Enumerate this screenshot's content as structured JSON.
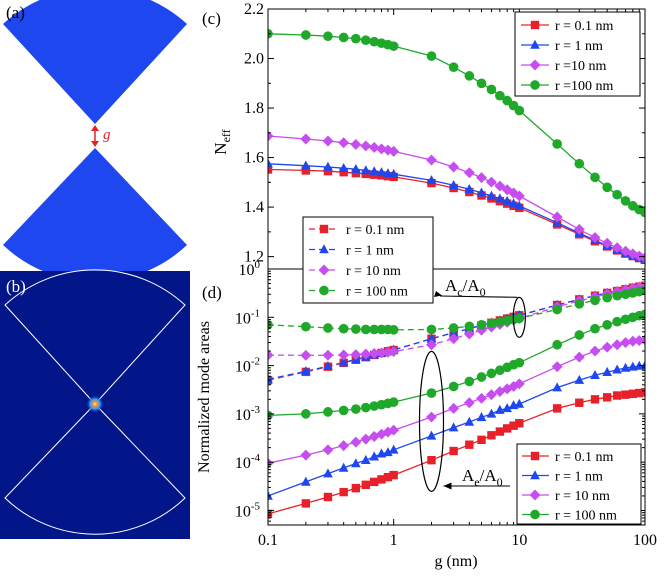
{
  "panels": {
    "a": {
      "label": "(a)",
      "gap_symbol": "g",
      "shape_color": "#1f47f0",
      "gap_color": "#e8202a"
    },
    "b": {
      "label": "(b)",
      "background_color": "#02168a",
      "outline_color": "#ffffff",
      "hotspot_color": "#fff6a8"
    },
    "c": {
      "label": "(c)"
    },
    "d": {
      "label": "(d)"
    }
  },
  "chart_data": [
    {
      "id": "c",
      "type": "line",
      "title": "",
      "xlabel": "g (nm)",
      "ylabel_main": "N",
      "ylabel_sub": "eff",
      "xscale": "log",
      "xlim": [
        0.1,
        100
      ],
      "ylim": [
        1.15,
        2.2
      ],
      "yticks": [
        1.2,
        1.4,
        1.6,
        1.8,
        2.0,
        2.2
      ],
      "ytick_labels": [
        "1.2",
        "1.4",
        "1.6",
        "1.8",
        "2.0",
        "2.2"
      ],
      "legend_position": "top-right",
      "x": [
        0.1,
        0.2,
        0.3,
        0.4,
        0.5,
        0.6,
        0.7,
        0.8,
        0.9,
        1,
        2,
        3,
        4,
        5,
        6,
        7,
        8,
        9,
        10,
        20,
        30,
        40,
        50,
        60,
        70,
        80,
        90,
        100
      ],
      "series": [
        {
          "name": "r = 0.1 nm",
          "color": "#e8202a",
          "marker": "square",
          "values": [
            1.552,
            1.548,
            1.545,
            1.541,
            1.537,
            1.534,
            1.531,
            1.528,
            1.525,
            1.522,
            1.497,
            1.477,
            1.461,
            1.447,
            1.435,
            1.424,
            1.414,
            1.405,
            1.397,
            1.33,
            1.29,
            1.262,
            1.241,
            1.225,
            1.212,
            1.202,
            1.194,
            1.187
          ]
        },
        {
          "name": "r = 1 nm",
          "color": "#1f47f0",
          "marker": "triangle",
          "values": [
            1.575,
            1.567,
            1.562,
            1.557,
            1.553,
            1.548,
            1.544,
            1.54,
            1.536,
            1.533,
            1.508,
            1.488,
            1.472,
            1.458,
            1.445,
            1.434,
            1.424,
            1.414,
            1.405,
            1.337,
            1.295,
            1.266,
            1.244,
            1.227,
            1.214,
            1.203,
            1.195,
            1.188
          ]
        },
        {
          "name": "r =10 nm",
          "color": "#c64df0",
          "marker": "diamond",
          "values": [
            1.687,
            1.675,
            1.667,
            1.66,
            1.653,
            1.647,
            1.641,
            1.635,
            1.63,
            1.625,
            1.59,
            1.562,
            1.539,
            1.519,
            1.501,
            1.485,
            1.47,
            1.457,
            1.445,
            1.36,
            1.31,
            1.277,
            1.254,
            1.236,
            1.222,
            1.211,
            1.202,
            1.195
          ]
        },
        {
          "name": "r =100 nm",
          "color": "#1fa829",
          "marker": "circle",
          "values": [
            2.1,
            2.095,
            2.09,
            2.085,
            2.08,
            2.074,
            2.068,
            2.062,
            2.056,
            2.05,
            2.01,
            1.965,
            1.93,
            1.9,
            1.875,
            1.85,
            1.83,
            1.81,
            1.79,
            1.655,
            1.575,
            1.52,
            1.48,
            1.45,
            1.425,
            1.405,
            1.39,
            1.378
          ]
        }
      ]
    },
    {
      "id": "d",
      "type": "line",
      "title": "",
      "xlabel": "g (nm)",
      "ylabel": "Normalized mode areas",
      "xscale": "log",
      "yscale": "log",
      "xlim": [
        0.1,
        100
      ],
      "ylim": [
        5e-06,
        1
      ],
      "xtick_labels": [
        "0.1",
        "1",
        "10",
        "100"
      ],
      "ytick_labels_base": [
        "10",
        "10",
        "10",
        "10",
        "10",
        "10"
      ],
      "ytick_labels_exp": [
        "-5",
        "-4",
        "-3",
        "-2",
        "-1",
        "0"
      ],
      "annotations": [
        {
          "main": "A",
          "sub": "c",
          "rest": "/A",
          "rest_sub": "0",
          "target_x": 10,
          "target_y": 0.1
        },
        {
          "main": "A",
          "sub": "e",
          "rest": "/A",
          "rest_sub": "0",
          "target_x": 2,
          "target_y": 0.0007
        }
      ],
      "legend_dashed_position": "top-left",
      "legend_solid_position": "bottom-right",
      "x": [
        0.1,
        0.2,
        0.3,
        0.4,
        0.5,
        0.6,
        0.7,
        0.8,
        0.9,
        1,
        2,
        3,
        4,
        5,
        6,
        7,
        8,
        9,
        10,
        20,
        30,
        40,
        50,
        60,
        70,
        80,
        90,
        100
      ],
      "series_dashed": [
        {
          "name": "r = 0.1 nm",
          "color": "#e8202a",
          "marker": "square",
          "values": [
            0.005,
            0.0074,
            0.0095,
            0.0114,
            0.0132,
            0.0149,
            0.0166,
            0.0182,
            0.0198,
            0.021,
            0.036,
            0.048,
            0.058,
            0.068,
            0.077,
            0.086,
            0.094,
            0.102,
            0.11,
            0.18,
            0.235,
            0.28,
            0.32,
            0.35,
            0.38,
            0.41,
            0.43,
            0.45
          ]
        },
        {
          "name": "r = 1 nm",
          "color": "#1f47f0",
          "marker": "triangle",
          "values": [
            0.0052,
            0.0076,
            0.0097,
            0.0116,
            0.0134,
            0.0151,
            0.0167,
            0.0183,
            0.0199,
            0.0211,
            0.036,
            0.048,
            0.058,
            0.068,
            0.077,
            0.086,
            0.094,
            0.102,
            0.11,
            0.18,
            0.235,
            0.28,
            0.32,
            0.35,
            0.38,
            0.41,
            0.43,
            0.45
          ]
        },
        {
          "name": "r = 10 nm",
          "color": "#c64df0",
          "marker": "diamond",
          "values": [
            0.0165,
            0.0163,
            0.0164,
            0.0166,
            0.0169,
            0.0173,
            0.0178,
            0.0183,
            0.0188,
            0.0195,
            0.027,
            0.036,
            0.045,
            0.054,
            0.063,
            0.071,
            0.079,
            0.087,
            0.095,
            0.165,
            0.22,
            0.265,
            0.305,
            0.34,
            0.37,
            0.4,
            0.42,
            0.44
          ]
        },
        {
          "name": "r = 100 nm",
          "color": "#1fa829",
          "marker": "circle",
          "values": [
            0.07,
            0.064,
            0.06,
            0.058,
            0.057,
            0.056,
            0.056,
            0.056,
            0.056,
            0.055,
            0.056,
            0.06,
            0.065,
            0.07,
            0.075,
            0.08,
            0.085,
            0.09,
            0.095,
            0.145,
            0.19,
            0.225,
            0.255,
            0.28,
            0.3,
            0.32,
            0.34,
            0.36
          ]
        }
      ],
      "series_solid": [
        {
          "name": "r = 0.1 nm",
          "color": "#e8202a",
          "marker": "square",
          "values": [
            8.5e-06,
            1.4e-05,
            1.9e-05,
            2.4e-05,
            2.9e-05,
            3.4e-05,
            3.9e-05,
            4.4e-05,
            4.9e-05,
            5.4e-05,
            0.00011,
            0.00017,
            0.00023,
            0.00029,
            0.00036,
            0.00043,
            0.0005,
            0.00057,
            0.00064,
            0.0013,
            0.0017,
            0.002,
            0.0022,
            0.0024,
            0.0025,
            0.0026,
            0.0027,
            0.0028
          ]
        },
        {
          "name": "r = 1 nm",
          "color": "#1f47f0",
          "marker": "triangle",
          "values": [
            2e-05,
            3.9e-05,
            5.8e-05,
            7.6e-05,
            9.4e-05,
            0.00011,
            0.00013,
            0.00015,
            0.00016,
            0.00018,
            0.00035,
            0.00052,
            0.00068,
            0.00085,
            0.001,
            0.0012,
            0.0013,
            0.0015,
            0.0016,
            0.0035,
            0.005,
            0.0063,
            0.0073,
            0.0082,
            0.0089,
            0.0094,
            0.0098,
            0.01
          ]
        },
        {
          "name": "r = 10 nm",
          "color": "#c64df0",
          "marker": "diamond",
          "values": [
            9.5e-05,
            0.00014,
            0.00018,
            0.00022,
            0.00026,
            0.0003,
            0.00034,
            0.00038,
            0.00042,
            0.00046,
            0.00086,
            0.0013,
            0.0017,
            0.0021,
            0.0025,
            0.0029,
            0.0033,
            0.0037,
            0.0042,
            0.0095,
            0.015,
            0.02,
            0.024,
            0.027,
            0.03,
            0.032,
            0.033,
            0.034
          ]
        },
        {
          "name": "r = 100 nm",
          "color": "#1fa829",
          "marker": "circle",
          "values": [
            0.00093,
            0.001,
            0.0011,
            0.00118,
            0.00126,
            0.00135,
            0.00145,
            0.00155,
            0.00165,
            0.00175,
            0.0027,
            0.0037,
            0.0047,
            0.0058,
            0.0069,
            0.008,
            0.0092,
            0.0104,
            0.0115,
            0.027,
            0.043,
            0.058,
            0.07,
            0.081,
            0.091,
            0.1,
            0.108,
            0.115
          ]
        }
      ]
    }
  ]
}
